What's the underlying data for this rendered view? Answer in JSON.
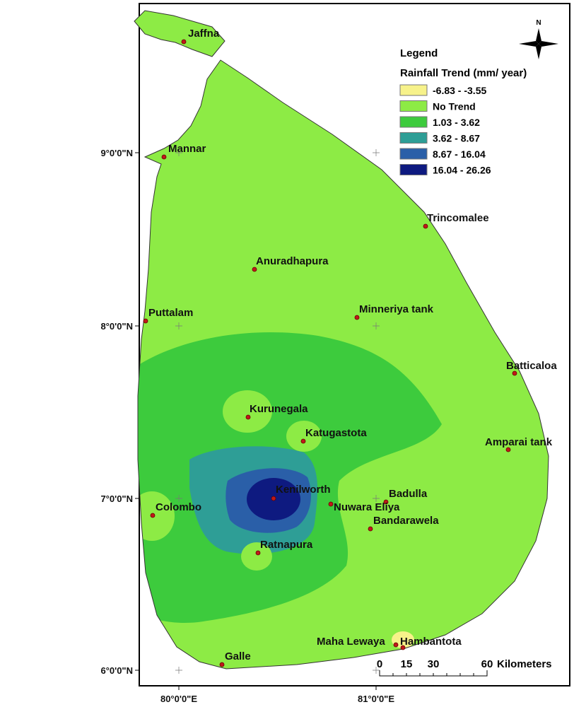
{
  "map": {
    "north_label": "N",
    "legend": {
      "title": "Legend",
      "subtitle": "Rainfall Trend (mm/ year)",
      "items": [
        {
          "label": "-6.83 - -3.55",
          "color": "#f7f28a"
        },
        {
          "label": "No Trend",
          "color": "#8deb45"
        },
        {
          "label": "1.03 - 3.62",
          "color": "#3dcb3d"
        },
        {
          "label": "3.62 - 8.67",
          "color": "#2e9e96"
        },
        {
          "label": "8.67 - 16.04",
          "color": "#2a5fa8"
        },
        {
          "label": "16.04 - 26.26",
          "color": "#0e1a80"
        }
      ]
    },
    "lat_labels": [
      "9°0'0\"N",
      "8°0'0\"N",
      "7°0'0\"N",
      "6°0'0\"N"
    ],
    "lon_labels": [
      "80°0'0\"E",
      "81°0'0\"E"
    ],
    "scale": {
      "ticks": [
        "0",
        "15",
        "30",
        "60"
      ],
      "unit": "Kilometers"
    },
    "cities": [
      "Jaffna",
      "Mannar",
      "Trincomalee",
      "Anuradhapura",
      "Puttalam",
      "Minneriya tank",
      "Batticaloa",
      "Kurunegala",
      "Katugastota",
      "Amparai tank",
      "Kenilworth",
      "Badulla",
      "Colombo",
      "Nuwara Eliya",
      "Bandarawela",
      "Ratnapura",
      "Maha Lewaya",
      "Hambantota",
      "Galle"
    ]
  }
}
